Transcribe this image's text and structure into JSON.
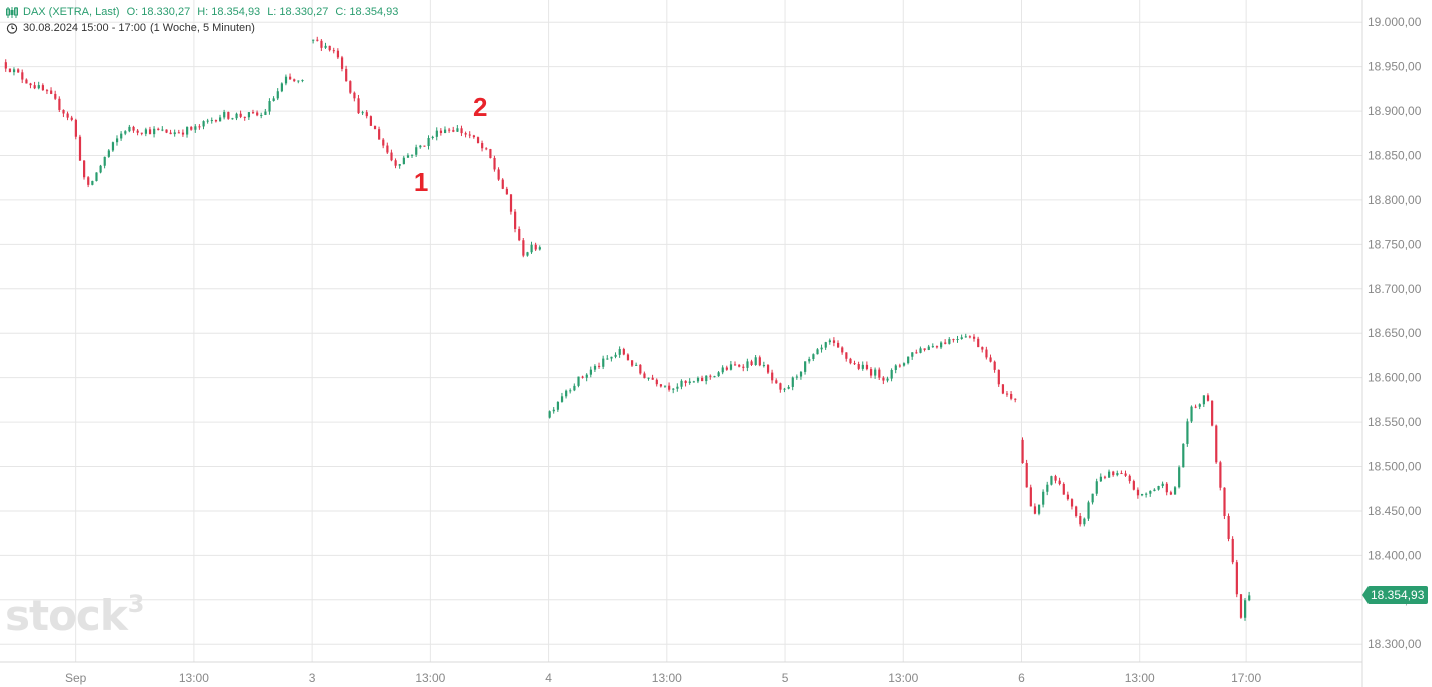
{
  "header": {
    "instrument": "DAX (XETRA, Last)",
    "open": "O: 18.330,27",
    "high": "H: 18.354,93",
    "low": "L: 18.330,27",
    "close": "C: 18.354,93",
    "timeframe": "30.08.2024 15:00 - 17:00",
    "period": "(1 Woche, 5 Minuten)"
  },
  "logo": {
    "text": "stock",
    "superscript": "3"
  },
  "last_price_label": "18.354,93",
  "annotations": [
    {
      "text": "1",
      "x": 8.9,
      "y": 18820
    },
    {
      "text": "2",
      "x": 10.15,
      "y": 18905
    }
  ],
  "colors": {
    "up": "#2a9d6f",
    "down": "#e0344a",
    "grid": "#e6e6e6",
    "axis_text": "#888888"
  },
  "chart_data": {
    "type": "candlestick",
    "title": "DAX (XETRA, Last)",
    "xlabel": "",
    "ylabel": "",
    "ylim": [
      18280,
      19025
    ],
    "xlim": [
      0,
      28.8
    ],
    "yticks": [
      18300,
      18350,
      18400,
      18450,
      18500,
      18550,
      18600,
      18650,
      18700,
      18750,
      18800,
      18850,
      18900,
      18950,
      19000
    ],
    "ytick_labels": [
      "18.300,00",
      "18.350,00",
      "18.400,00",
      "18.450,00",
      "18.500,00",
      "18.550,00",
      "18.600,00",
      "18.650,00",
      "18.700,00",
      "18.750,00",
      "18.800,00",
      "18.850,00",
      "18.900,00",
      "18.950,00",
      "19.000,00"
    ],
    "xticks": [
      {
        "label": "Sep",
        "x": 1.6
      },
      {
        "label": "13:00",
        "x": 4.1
      },
      {
        "label": "3",
        "x": 6.6
      },
      {
        "label": "13:00",
        "x": 9.1
      },
      {
        "label": "4",
        "x": 11.6
      },
      {
        "label": "13:00",
        "x": 14.1
      },
      {
        "label": "5",
        "x": 16.6
      },
      {
        "label": "13:00",
        "x": 19.1
      },
      {
        "label": "6",
        "x": 21.6
      },
      {
        "label": "13:00",
        "x": 24.1
      },
      {
        "label": "17:00",
        "x": 26.35
      }
    ],
    "grid": true,
    "session_length": 8.8,
    "last_price": 18354.93,
    "sessions": [
      {
        "x0": 0.1,
        "x1": 6.5,
        "path": [
          [
            0,
            18955
          ],
          [
            0.5,
            18935
          ],
          [
            1.0,
            18918
          ],
          [
            1.5,
            18888
          ],
          [
            1.8,
            18810
          ],
          [
            2.2,
            18850
          ],
          [
            2.6,
            18880
          ],
          [
            3.1,
            18878
          ],
          [
            3.6,
            18876
          ],
          [
            4.1,
            18880
          ],
          [
            4.6,
            18895
          ],
          [
            5.1,
            18895
          ],
          [
            5.5,
            18895
          ],
          [
            6.0,
            18935
          ],
          [
            6.5,
            18930
          ]
        ]
      },
      {
        "x0": 6.6,
        "x1": 11.5,
        "path": [
          [
            0,
            18980
          ],
          [
            0.3,
            18975
          ],
          [
            0.6,
            18965
          ],
          [
            1.0,
            18905
          ],
          [
            1.4,
            18878
          ],
          [
            1.8,
            18840
          ],
          [
            2.3,
            18858
          ],
          [
            2.8,
            18880
          ],
          [
            3.1,
            18880
          ],
          [
            3.4,
            18872
          ],
          [
            3.8,
            18850
          ],
          [
            4.2,
            18800
          ],
          [
            4.5,
            18740
          ],
          [
            4.9,
            18750
          ]
        ]
      },
      {
        "x0": 11.6,
        "x1": 21.5,
        "path": [
          [
            0,
            18555
          ],
          [
            0.4,
            18585
          ],
          [
            1.0,
            18610
          ],
          [
            1.6,
            18630
          ],
          [
            2.0,
            18605
          ],
          [
            2.6,
            18590
          ],
          [
            3.2,
            18595
          ],
          [
            3.8,
            18610
          ],
          [
            4.5,
            18620
          ],
          [
            5.0,
            18580
          ],
          [
            5.4,
            18610
          ],
          [
            6.0,
            18640
          ],
          [
            6.5,
            18615
          ],
          [
            7.2,
            18600
          ],
          [
            7.8,
            18630
          ],
          [
            8.4,
            18640
          ],
          [
            8.9,
            18650
          ],
          [
            9.3,
            18630
          ],
          [
            9.7,
            18580
          ]
        ]
      },
      {
        "x0": 21.6,
        "x1": 26.5,
        "path": [
          [
            0,
            18530
          ],
          [
            0.3,
            18440
          ],
          [
            0.7,
            18490
          ],
          [
            1.0,
            18470
          ],
          [
            1.3,
            18430
          ],
          [
            1.7,
            18490
          ],
          [
            2.2,
            18490
          ],
          [
            2.6,
            18465
          ],
          [
            3.0,
            18480
          ],
          [
            3.3,
            18470
          ],
          [
            3.6,
            18560
          ],
          [
            4.0,
            18580
          ],
          [
            4.2,
            18500
          ],
          [
            4.5,
            18400
          ],
          [
            4.7,
            18330
          ],
          [
            4.8,
            18355
          ]
        ]
      }
    ]
  }
}
